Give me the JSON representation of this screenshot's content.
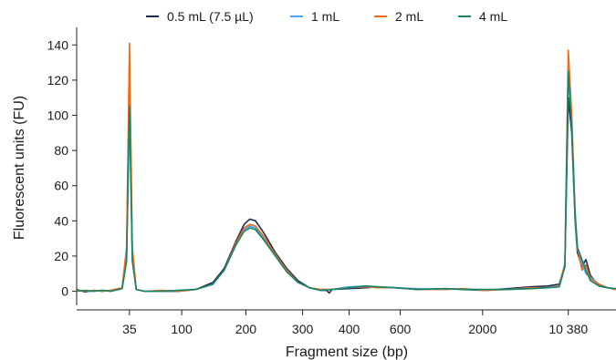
{
  "chart_data": {
    "type": "line",
    "xlabel": "Fragment size (bp)",
    "ylabel": "Fluorescent units (FU)",
    "x_categories": [
      "35",
      "100",
      "200",
      "300",
      "400",
      "600",
      "2000",
      "10 380"
    ],
    "xlim": [
      0,
      9.5
    ],
    "ylim": [
      -8,
      150
    ],
    "yticks": [
      0,
      20,
      40,
      60,
      80,
      100,
      120,
      140
    ],
    "legend_position": "top",
    "series": [
      {
        "name": "0.5 mL (7.5 µL)",
        "color": "#1b2a57",
        "points": [
          [
            0.0,
            1
          ],
          [
            0.15,
            -0.5
          ],
          [
            0.3,
            0.5
          ],
          [
            0.45,
            0
          ],
          [
            0.6,
            0.5
          ],
          [
            0.8,
            2
          ],
          [
            0.88,
            20
          ],
          [
            0.93,
            114
          ],
          [
            0.98,
            20
          ],
          [
            1.05,
            1
          ],
          [
            1.2,
            0
          ],
          [
            1.5,
            0
          ],
          [
            1.8,
            0
          ],
          [
            2.1,
            1
          ],
          [
            2.4,
            5
          ],
          [
            2.6,
            13
          ],
          [
            2.8,
            28
          ],
          [
            2.95,
            38
          ],
          [
            3.05,
            41
          ],
          [
            3.15,
            40
          ],
          [
            3.3,
            33
          ],
          [
            3.5,
            22
          ],
          [
            3.7,
            13
          ],
          [
            3.9,
            6
          ],
          [
            4.1,
            2
          ],
          [
            4.3,
            0.5
          ],
          [
            4.4,
            0.5
          ],
          [
            4.45,
            -1
          ],
          [
            4.5,
            1
          ],
          [
            4.8,
            1.5
          ],
          [
            5.1,
            2
          ],
          [
            5.3,
            2.5
          ],
          [
            5.6,
            2
          ],
          [
            6.0,
            1
          ],
          [
            6.5,
            1.5
          ],
          [
            6.8,
            1
          ],
          [
            7.2,
            0.5
          ],
          [
            7.6,
            1.5
          ],
          [
            8.0,
            2.5
          ],
          [
            8.3,
            3
          ],
          [
            8.5,
            4
          ],
          [
            8.6,
            15
          ],
          [
            8.66,
            110
          ],
          [
            8.72,
            90
          ],
          [
            8.78,
            40
          ],
          [
            8.82,
            22
          ],
          [
            8.9,
            14
          ],
          [
            8.97,
            18
          ],
          [
            9.05,
            9
          ],
          [
            9.2,
            3
          ],
          [
            9.35,
            2
          ],
          [
            9.5,
            1
          ]
        ]
      },
      {
        "name": "1 mL",
        "color": "#4aa3f0",
        "points": [
          [
            0.0,
            0.5
          ],
          [
            0.15,
            0
          ],
          [
            0.3,
            0
          ],
          [
            0.45,
            0.5
          ],
          [
            0.6,
            0
          ],
          [
            0.8,
            1.5
          ],
          [
            0.88,
            18
          ],
          [
            0.93,
            108
          ],
          [
            0.98,
            18
          ],
          [
            1.05,
            1
          ],
          [
            1.2,
            0
          ],
          [
            1.5,
            0
          ],
          [
            1.8,
            0.5
          ],
          [
            2.1,
            1
          ],
          [
            2.4,
            4
          ],
          [
            2.6,
            12
          ],
          [
            2.8,
            26
          ],
          [
            2.95,
            35
          ],
          [
            3.05,
            37
          ],
          [
            3.15,
            36
          ],
          [
            3.3,
            30
          ],
          [
            3.5,
            20
          ],
          [
            3.7,
            12
          ],
          [
            3.9,
            5
          ],
          [
            4.1,
            2
          ],
          [
            4.3,
            0.5
          ],
          [
            4.5,
            1
          ],
          [
            4.8,
            2.5
          ],
          [
            5.1,
            3
          ],
          [
            5.3,
            2.5
          ],
          [
            5.6,
            2
          ],
          [
            6.0,
            1.5
          ],
          [
            6.5,
            1
          ],
          [
            6.8,
            1.5
          ],
          [
            7.2,
            0.5
          ],
          [
            7.6,
            1
          ],
          [
            8.0,
            1.5
          ],
          [
            8.3,
            2
          ],
          [
            8.5,
            2.5
          ],
          [
            8.6,
            14
          ],
          [
            8.66,
            130
          ],
          [
            8.72,
            95
          ],
          [
            8.78,
            42
          ],
          [
            8.82,
            24
          ],
          [
            8.9,
            16
          ],
          [
            8.97,
            10
          ],
          [
            9.05,
            8
          ],
          [
            9.2,
            4
          ],
          [
            9.35,
            2
          ],
          [
            9.5,
            1
          ]
        ]
      },
      {
        "name": "2 mL",
        "color": "#f06a16",
        "points": [
          [
            0.0,
            0.5
          ],
          [
            0.15,
            0
          ],
          [
            0.3,
            0.5
          ],
          [
            0.45,
            0
          ],
          [
            0.6,
            0.5
          ],
          [
            0.8,
            2
          ],
          [
            0.88,
            25
          ],
          [
            0.93,
            141
          ],
          [
            0.98,
            25
          ],
          [
            1.05,
            1
          ],
          [
            1.2,
            0
          ],
          [
            1.5,
            0.5
          ],
          [
            1.8,
            0
          ],
          [
            2.1,
            1
          ],
          [
            2.4,
            4
          ],
          [
            2.6,
            12
          ],
          [
            2.8,
            27
          ],
          [
            2.95,
            36
          ],
          [
            3.05,
            38
          ],
          [
            3.15,
            37
          ],
          [
            3.3,
            31
          ],
          [
            3.5,
            21
          ],
          [
            3.7,
            12
          ],
          [
            3.9,
            5
          ],
          [
            4.1,
            2
          ],
          [
            4.3,
            1
          ],
          [
            4.5,
            1
          ],
          [
            4.8,
            2
          ],
          [
            5.1,
            2.5
          ],
          [
            5.3,
            2
          ],
          [
            5.6,
            2
          ],
          [
            6.0,
            1
          ],
          [
            6.5,
            1
          ],
          [
            6.8,
            1.5
          ],
          [
            7.2,
            0.5
          ],
          [
            7.6,
            1
          ],
          [
            8.0,
            2
          ],
          [
            8.3,
            2
          ],
          [
            8.5,
            3
          ],
          [
            8.6,
            16
          ],
          [
            8.66,
            137
          ],
          [
            8.72,
            100
          ],
          [
            8.78,
            45
          ],
          [
            8.82,
            25
          ],
          [
            8.9,
            12
          ],
          [
            8.97,
            15
          ],
          [
            9.05,
            7
          ],
          [
            9.2,
            4
          ],
          [
            9.35,
            2
          ],
          [
            9.5,
            1
          ]
        ]
      },
      {
        "name": "4 mL",
        "color": "#12876a",
        "points": [
          [
            0.0,
            0
          ],
          [
            0.15,
            0.5
          ],
          [
            0.3,
            0
          ],
          [
            0.45,
            0.5
          ],
          [
            0.6,
            0
          ],
          [
            0.8,
            1.5
          ],
          [
            0.88,
            17
          ],
          [
            0.93,
            105
          ],
          [
            0.98,
            17
          ],
          [
            1.05,
            1
          ],
          [
            1.2,
            0
          ],
          [
            1.5,
            0
          ],
          [
            1.8,
            0.5
          ],
          [
            2.1,
            1
          ],
          [
            2.4,
            4
          ],
          [
            2.6,
            12
          ],
          [
            2.8,
            26
          ],
          [
            2.95,
            34
          ],
          [
            3.05,
            36
          ],
          [
            3.15,
            35
          ],
          [
            3.3,
            29
          ],
          [
            3.5,
            20
          ],
          [
            3.7,
            11
          ],
          [
            3.9,
            5
          ],
          [
            4.1,
            2
          ],
          [
            4.3,
            0.5
          ],
          [
            4.5,
            1
          ],
          [
            4.8,
            2
          ],
          [
            5.1,
            3
          ],
          [
            5.3,
            2.5
          ],
          [
            5.6,
            2
          ],
          [
            6.0,
            1
          ],
          [
            6.5,
            1.5
          ],
          [
            6.8,
            1
          ],
          [
            7.2,
            1
          ],
          [
            7.6,
            1
          ],
          [
            8.0,
            1.5
          ],
          [
            8.3,
            2
          ],
          [
            8.5,
            2.5
          ],
          [
            8.6,
            14
          ],
          [
            8.66,
            125
          ],
          [
            8.72,
            92
          ],
          [
            8.78,
            44
          ],
          [
            8.82,
            25
          ],
          [
            8.9,
            18
          ],
          [
            8.97,
            12
          ],
          [
            9.05,
            6
          ],
          [
            9.2,
            3
          ],
          [
            9.35,
            2
          ],
          [
            9.5,
            1.5
          ]
        ]
      }
    ]
  }
}
